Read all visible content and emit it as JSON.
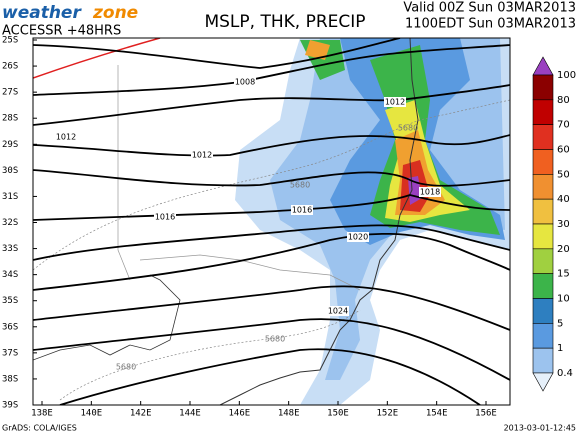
{
  "header": {
    "logo_weather": "weather",
    "logo_zone": "zone",
    "model": "ACCESSR +48HRS",
    "title": "MSLP, THK, PRECIP",
    "valid": "Valid 00Z Sun 03MAR2013",
    "local": "1100EDT Sun 03MAR2013"
  },
  "map": {
    "lat_labels": [
      "25S",
      "26S",
      "27S",
      "28S",
      "29S",
      "30S",
      "31S",
      "32S",
      "33S",
      "34S",
      "35S",
      "36S",
      "37S",
      "38S",
      "39S"
    ],
    "lon_labels": [
      "138E",
      "140E",
      "142E",
      "144E",
      "146E",
      "148E",
      "150E",
      "152E",
      "154E",
      "156E"
    ],
    "contour_labels": [
      "1008",
      "1012",
      "1012",
      "1012",
      "1018",
      "1016",
      "1016",
      "1020",
      "1024",
      "5680",
      "5680",
      "5680",
      "5680"
    ]
  },
  "colorbar": {
    "levels": [
      100,
      80,
      70,
      60,
      50,
      40,
      30,
      20,
      15,
      10,
      5,
      1,
      0.4
    ],
    "colors": [
      "#9a40c0",
      "#8b0000",
      "#c00000",
      "#e03020",
      "#f06020",
      "#f09030",
      "#f0c040",
      "#e6e640",
      "#a0d040",
      "#3cb44a",
      "#2e7fc0",
      "#5a9ae0",
      "#9cc3ee",
      "#e6f0fa"
    ]
  },
  "footer": {
    "credit": "GrADS: COLA/IGES",
    "timestamp": "2013-03-01-12:45"
  }
}
